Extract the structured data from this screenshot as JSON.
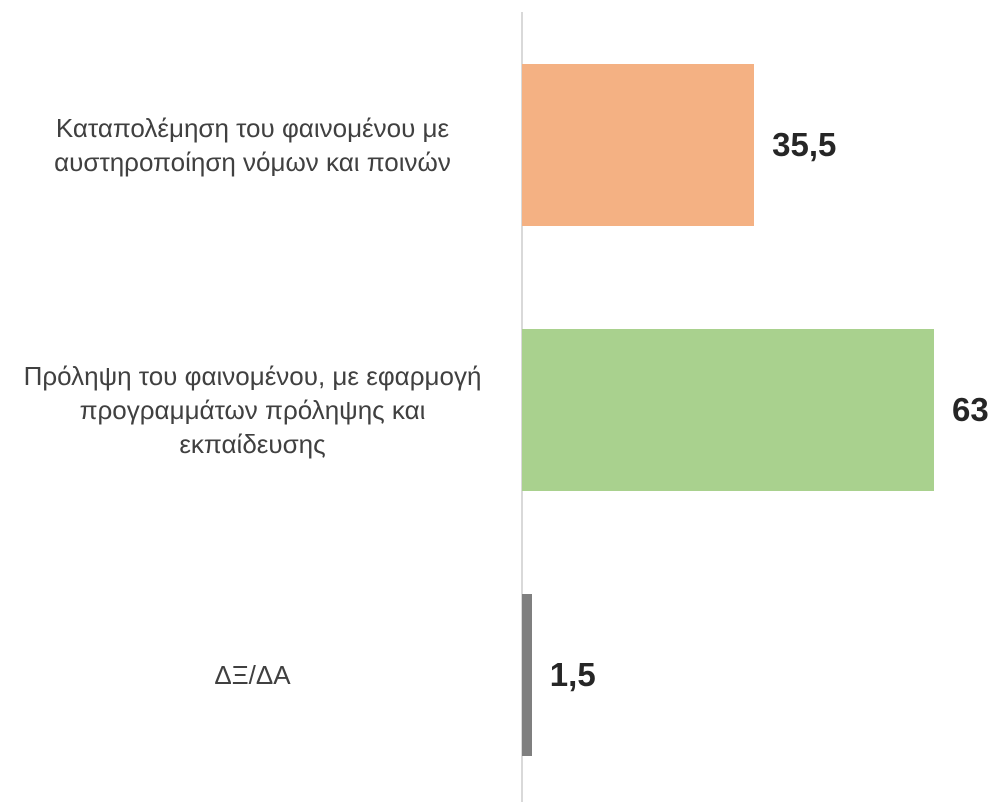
{
  "chart_data": {
    "type": "bar",
    "orientation": "horizontal",
    "categories": [
      "Καταπολέμηση του φαινομένου με αυστηροποίηση νόμων και ποινών",
      "Πρόληψη του φαινομένου, με εφαρμογή προγραμμάτων πρόληψης και εκπαίδευσης",
      "ΔΞ/ΔΑ"
    ],
    "values": [
      35.5,
      63,
      1.5
    ],
    "value_labels": [
      "35,5",
      "63",
      "1,5"
    ],
    "colors": [
      "#f4b183",
      "#a9d18e",
      "#7f7f7f"
    ]
  }
}
